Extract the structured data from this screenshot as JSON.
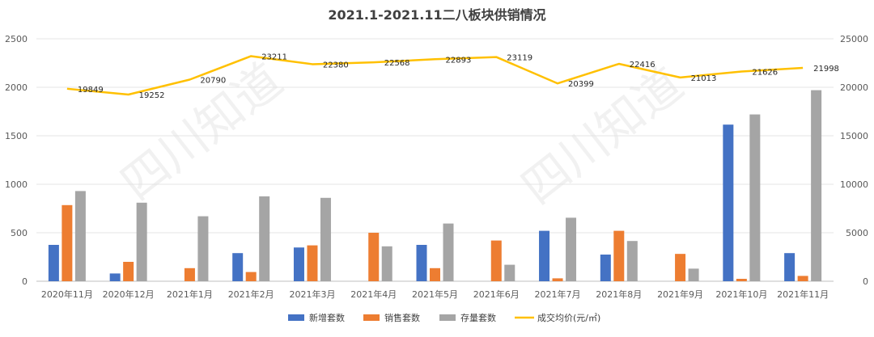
{
  "chart_data": {
    "type": "bar",
    "title": "2021.1-2021.11二八板块供销情况",
    "watermark": "四川知道",
    "categories": [
      "2020年11月",
      "2020年12月",
      "2021年1月",
      "2021年2月",
      "2021年3月",
      "2021年4月",
      "2021年5月",
      "2021年6月",
      "2021年7月",
      "2021年8月",
      "2021年9月",
      "2021年10月",
      "2021年11月"
    ],
    "series": [
      {
        "name": "新增套数",
        "type": "bar",
        "axis": "left",
        "color": "#4472C4",
        "values": [
          375,
          80,
          null,
          290,
          348,
          null,
          375,
          null,
          520,
          275,
          null,
          1615,
          290
        ]
      },
      {
        "name": "销售套数",
        "type": "bar",
        "axis": "left",
        "color": "#ED7D31",
        "values": [
          785,
          200,
          135,
          95,
          370,
          500,
          135,
          420,
          30,
          520,
          282,
          25,
          55
        ]
      },
      {
        "name": "存量套数",
        "type": "bar",
        "axis": "left",
        "color": "#A5A5A5",
        "values": [
          930,
          810,
          670,
          875,
          860,
          360,
          595,
          170,
          655,
          415,
          130,
          1720,
          1970
        ]
      },
      {
        "name": "成交均价(元/㎡)",
        "type": "line",
        "axis": "right",
        "color": "#FFC000",
        "values": [
          19849,
          19252,
          20790,
          23211,
          22380,
          22568,
          22893,
          23119,
          20399,
          22416,
          21013,
          21626,
          21998
        ],
        "labels": [
          "19849",
          "19252",
          "20790",
          "23211",
          "22380",
          "22568",
          "22893",
          "23119",
          "20399",
          "22416",
          "21013",
          "21626",
          "21998"
        ]
      }
    ],
    "y_left": {
      "min": 0,
      "max": 2500,
      "ticks": [
        "0",
        "500",
        "1000",
        "1500",
        "2000",
        "2500"
      ]
    },
    "y_right": {
      "min": 0,
      "max": 25000,
      "ticks": [
        "0",
        "5000",
        "10000",
        "15000",
        "20000",
        "25000"
      ]
    },
    "grid": true,
    "legend_position": "bottom"
  }
}
